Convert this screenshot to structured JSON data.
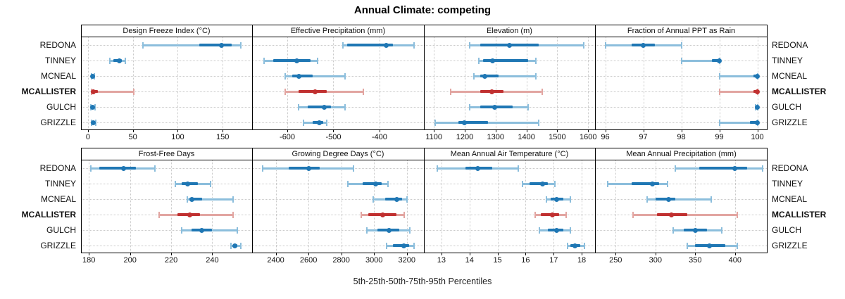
{
  "title": "Annual Climate: competing",
  "xlabel": "5th-25th-50th-75th-95th Percentiles",
  "sites": [
    "REDONA",
    "TINNEY",
    "MCNEAL",
    "MCALLISTER",
    "GULCH",
    "GRIZZLE"
  ],
  "highlight_site": "MCALLISTER",
  "colors": {
    "base": "#1f77b4",
    "base_light": "#8cbedc",
    "highlight": "#c03030",
    "highlight_light": "#e2a5a1",
    "grid": "#c9c9c9",
    "strip_bg": "#f0f0f0"
  },
  "chart_data": {
    "type": "scatter",
    "subtype": "percentile-interval-dot-plot",
    "percentile_order": [
      "5th",
      "25th",
      "50th",
      "75th",
      "95th"
    ],
    "grid": "dotted",
    "layout": "2 rows x 4 columns of panels, site labels on both sides",
    "panels": [
      {
        "title": "Design Freeze Index (°C)",
        "ticks": [
          0,
          50,
          100,
          150
        ],
        "xlim": [
          -7,
          182
        ],
        "rows": [
          {
            "site": "REDONA",
            "p": [
              61,
              124,
              149,
              160,
              170
            ]
          },
          {
            "site": "TINNEY",
            "p": [
              24,
              28,
              35,
              38,
              42
            ]
          },
          {
            "site": "MCNEAL",
            "p": [
              4,
              4.5,
              5,
              6,
              7
            ]
          },
          {
            "site": "MCALLISTER",
            "p": [
              4,
              5,
              6,
              11,
              51
            ]
          },
          {
            "site": "GULCH",
            "p": [
              3.5,
              4.5,
              5.5,
              6.5,
              8
            ]
          },
          {
            "site": "GRIZZLE",
            "p": [
              4,
              5,
              6,
              7.5,
              9
            ]
          }
        ]
      },
      {
        "title": "Effective Precipitation (mm)",
        "ticks": [
          -600,
          -500,
          -400
        ],
        "xlim": [
          -675,
          -305
        ],
        "rows": [
          {
            "site": "REDONA",
            "p": [
              -480,
              -470,
              -385,
              -370,
              -325
            ]
          },
          {
            "site": "TINNEY",
            "p": [
              -650,
              -630,
              -580,
              -550,
              -535
            ]
          },
          {
            "site": "MCNEAL",
            "p": [
              -605,
              -590,
              -575,
              -545,
              -475
            ]
          },
          {
            "site": "MCALLISTER",
            "p": [
              -605,
              -575,
              -540,
              -515,
              -435
            ]
          },
          {
            "site": "GULCH",
            "p": [
              -575,
              -555,
              -520,
              -505,
              -475
            ]
          },
          {
            "site": "GRIZZLE",
            "p": [
              -565,
              -545,
              -530,
              -522,
              -515
            ]
          }
        ]
      },
      {
        "title": "Elevation (m)",
        "ticks": [
          1100,
          1200,
          1300,
          1400,
          1500,
          1600
        ],
        "xlim": [
          1070,
          1620
        ],
        "rows": [
          {
            "site": "REDONA",
            "p": [
              1215,
              1250,
              1345,
              1440,
              1585
            ]
          },
          {
            "site": "TINNEY",
            "p": [
              1245,
              1260,
              1290,
              1405,
              1430
            ]
          },
          {
            "site": "MCNEAL",
            "p": [
              1230,
              1250,
              1265,
              1310,
              1430
            ]
          },
          {
            "site": "MCALLISTER",
            "p": [
              1155,
              1250,
              1287,
              1325,
              1450
            ]
          },
          {
            "site": "GULCH",
            "p": [
              1215,
              1250,
              1298,
              1355,
              1405
            ]
          },
          {
            "site": "GRIZZLE",
            "p": [
              1105,
              1180,
              1200,
              1275,
              1440
            ]
          }
        ]
      },
      {
        "title": "Fraction of Annual PPT as Rain",
        "ticks": [
          96,
          97,
          98,
          99,
          100
        ],
        "xlim": [
          95.75,
          100.25
        ],
        "rows": [
          {
            "site": "REDONA",
            "p": [
              96,
              96.7,
              97,
              97.3,
              98
            ]
          },
          {
            "site": "TINNEY",
            "p": [
              98,
              98.8,
              99,
              99,
              99
            ]
          },
          {
            "site": "MCNEAL",
            "p": [
              99,
              99.9,
              100,
              100,
              100
            ]
          },
          {
            "site": "MCALLISTER",
            "p": [
              99,
              99.9,
              100,
              100,
              100
            ]
          },
          {
            "site": "GULCH",
            "p": [
              99.95,
              100,
              100,
              100,
              100
            ]
          },
          {
            "site": "GRIZZLE",
            "p": [
              99,
              99.8,
              100,
              100,
              100
            ]
          }
        ]
      },
      {
        "title": "Frost-Free Days",
        "ticks": [
          180,
          200,
          220,
          240
        ],
        "xlim": [
          176.5,
          259
        ],
        "rows": [
          {
            "site": "REDONA",
            "p": [
              181,
              185,
              197,
              203,
              212
            ]
          },
          {
            "site": "TINNEY",
            "p": [
              222,
              225,
              228,
              233,
              239
            ]
          },
          {
            "site": "MCNEAL",
            "p": [
              228,
              229,
              230,
              235,
              250
            ]
          },
          {
            "site": "MCALLISTER",
            "p": [
              214,
              223,
              229,
              234,
              250
            ]
          },
          {
            "site": "GULCH",
            "p": [
              225,
              230,
              235,
              240,
              252
            ]
          },
          {
            "site": "GRIZZLE",
            "p": [
              249,
              250,
              251,
              252,
              254
            ]
          }
        ]
      },
      {
        "title": "Growing Degree Days (°C)",
        "ticks": [
          2400,
          2600,
          2800,
          3000,
          3200
        ],
        "xlim": [
          2260,
          3300
        ],
        "rows": [
          {
            "site": "REDONA",
            "p": [
              2320,
              2480,
              2600,
              2670,
              2875
            ]
          },
          {
            "site": "TINNEY",
            "p": [
              2840,
              2930,
              3010,
              3045,
              3085
            ]
          },
          {
            "site": "MCNEAL",
            "p": [
              2995,
              3070,
              3140,
              3170,
              3200
            ]
          },
          {
            "site": "MCALLISTER",
            "p": [
              2920,
              2965,
              3055,
              3135,
              3185
            ]
          },
          {
            "site": "GULCH",
            "p": [
              2955,
              3020,
              3090,
              3155,
              3220
            ]
          },
          {
            "site": "GRIZZLE",
            "p": [
              3075,
              3115,
              3180,
              3215,
              3245
            ]
          }
        ]
      },
      {
        "title": "Mean Annual Air Temperature (°C)",
        "ticks": [
          13,
          14,
          15,
          16,
          17,
          18
        ],
        "xlim": [
          12.4,
          18.45
        ],
        "rows": [
          {
            "site": "REDONA",
            "p": [
              12.85,
              13.85,
              14.3,
              14.8,
              15.75
            ]
          },
          {
            "site": "TINNEY",
            "p": [
              15.9,
              16.15,
              16.6,
              16.8,
              17.05
            ]
          },
          {
            "site": "MCNEAL",
            "p": [
              16.75,
              16.9,
              17.1,
              17.35,
              17.6
            ]
          },
          {
            "site": "MCALLISTER",
            "p": [
              16.35,
              16.55,
              16.95,
              17.2,
              17.45
            ]
          },
          {
            "site": "GULCH",
            "p": [
              16.5,
              16.8,
              17.1,
              17.35,
              17.6
            ]
          },
          {
            "site": "GRIZZLE",
            "p": [
              17.5,
              17.6,
              17.75,
              17.95,
              18.1
            ]
          }
        ]
      },
      {
        "title": "Mean Annual Precipitation (mm)",
        "ticks": [
          250,
          300,
          350,
          400
        ],
        "xlim": [
          225,
          440
        ],
        "rows": [
          {
            "site": "REDONA",
            "p": [
              325,
              355,
              400,
              415,
              435
            ]
          },
          {
            "site": "TINNEY",
            "p": [
              240,
              270,
              296,
              305,
              315
            ]
          },
          {
            "site": "MCNEAL",
            "p": [
              290,
              300,
              317,
              325,
              370
            ]
          },
          {
            "site": "MCALLISTER",
            "p": [
              272,
              302,
              320,
              340,
              403
            ]
          },
          {
            "site": "GULCH",
            "p": [
              322,
              336,
              350,
              365,
              383
            ]
          },
          {
            "site": "GRIZZLE",
            "p": [
              340,
              350,
              368,
              388,
              403
            ]
          }
        ]
      }
    ]
  }
}
